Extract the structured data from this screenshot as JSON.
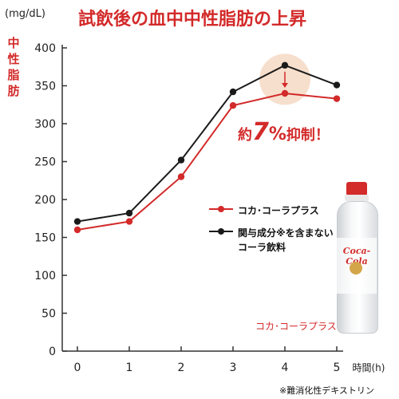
{
  "title": "試飲後の血中中性脂肪の上昇",
  "unit_label": "(mg/dL)",
  "ylabel_chars": [
    "中",
    "性",
    "脂",
    "肪"
  ],
  "callout": {
    "prefix": "約",
    "number": "7",
    "pct": "%",
    "suffix": "抑制！"
  },
  "bottle_caption": "コカ･コーラプラス",
  "bottle_logo": "Coca-Cola",
  "footnote": "※難消化性デキストリン",
  "colors": {
    "red": "#d32a2a",
    "black": "#1a1a1a",
    "highlight": "#f6d9c4"
  },
  "chart_data": {
    "type": "line",
    "title": "試飲後の血中中性脂肪の上昇",
    "x": [
      0,
      1,
      2,
      3,
      4,
      5
    ],
    "x_tick_labels": [
      "0",
      "1",
      "2",
      "3",
      "4",
      "5"
    ],
    "xlabel": "時間(h)",
    "ylabel": "中性脂肪",
    "y_unit": "(mg/dL)",
    "ylim": [
      0,
      400
    ],
    "y_ticks": [
      0,
      50,
      100,
      150,
      200,
      250,
      300,
      350,
      400
    ],
    "grid": false,
    "legend_position": "right-middle",
    "series": [
      {
        "name": "コカ･コーラプラス",
        "legend_lines": [
          "コカ･コーラプラス"
        ],
        "color": "#d32a2a",
        "values": [
          160,
          171,
          230,
          324,
          340,
          333
        ]
      },
      {
        "name": "関与成分※を含まないコーラ飲料",
        "legend_lines": [
          "関与成分※を含まない",
          "コーラ飲料"
        ],
        "color": "#1a1a1a",
        "values": [
          171,
          182,
          252,
          342,
          377,
          351
        ]
      }
    ]
  }
}
